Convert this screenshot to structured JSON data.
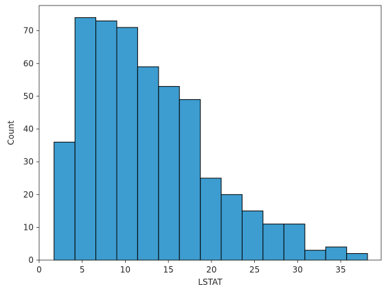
{
  "chart_data": {
    "type": "bar",
    "subtype": "histogram",
    "xlabel": "LSTAT",
    "ylabel": "Count",
    "xlim": [
      0.0,
      39.7
    ],
    "ylim": [
      0,
      77.7
    ],
    "xticks": [
      0,
      5,
      10,
      15,
      20,
      25,
      30,
      35
    ],
    "yticks": [
      0,
      10,
      20,
      30,
      40,
      50,
      60,
      70
    ],
    "bin_edges": [
      1.73,
      4.16,
      6.58,
      9.01,
      11.43,
      13.86,
      16.28,
      18.71,
      21.13,
      23.56,
      25.98,
      28.41,
      30.84,
      33.26,
      35.69,
      38.11
    ],
    "values": [
      36,
      74,
      73,
      71,
      59,
      53,
      49,
      25,
      20,
      15,
      11,
      11,
      3,
      4,
      2
    ],
    "grid": false,
    "colors": {
      "bar_fill": "#3d9dd0",
      "bar_edge": "#000000",
      "axis": "#262626"
    }
  }
}
